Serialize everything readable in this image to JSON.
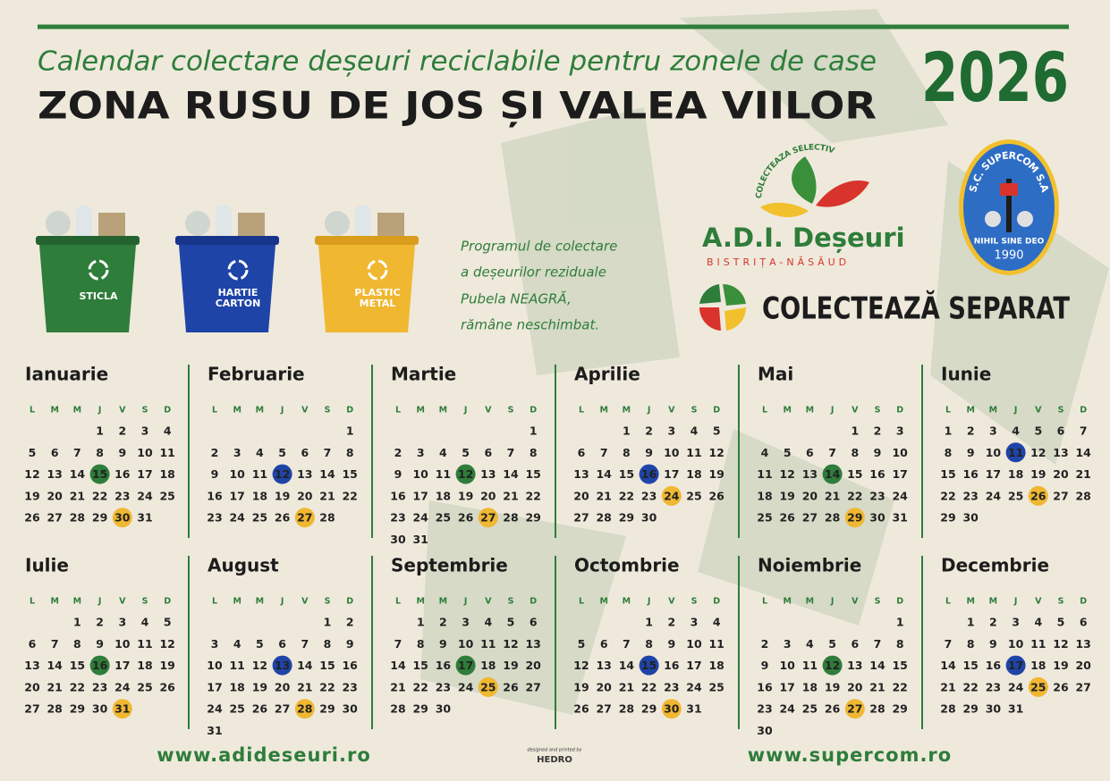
{
  "header": {
    "subtitle": "Calendar colectare deșeuri reciclabile pentru zonele de case",
    "title": "ZONA RUSU DE JOS ȘI VALEA VIILOR",
    "year": "2026"
  },
  "bins": {
    "glass": {
      "label": [
        "STICLA"
      ],
      "color": "#2e7d3a",
      "lid": "#236330"
    },
    "paper": {
      "label": [
        "HARTIE",
        "CARTON"
      ],
      "color": "#1f44a8",
      "lid": "#17358a"
    },
    "plastic": {
      "label": [
        "PLASTIC",
        "METAL"
      ],
      "color": "#f0b731",
      "lid": "#d99d1b"
    }
  },
  "note": [
    "Programul de colectare",
    "a deșeurilor reziduale",
    "Pubela NEAGRĂ,",
    "rămâne neschimbat."
  ],
  "logos": {
    "adi_arc": "COLECTEAZA SELECTIV",
    "adi_name": "A.D.I. Deșeuri",
    "adi_region": "BISTRIȚA-NĂSĂUD",
    "slogan": "COLECTEAZĂ SEPARAT",
    "supercom_name": "S.C. SUPERCOM S.A.",
    "supercom_motto": "NIHIL SINE DEO",
    "supercom_year": "1990"
  },
  "weekdays": [
    "L",
    "M",
    "M",
    "J",
    "V",
    "S",
    "D"
  ],
  "months": [
    {
      "name": "Ianuarie",
      "glass": 15,
      "plastic": 30,
      "weeks": [
        [
          null,
          null,
          null,
          1,
          2,
          3,
          4
        ],
        [
          5,
          6,
          7,
          8,
          9,
          10,
          11
        ],
        [
          12,
          13,
          14,
          15,
          16,
          17,
          18
        ],
        [
          19,
          20,
          21,
          22,
          23,
          24,
          25
        ],
        [
          26,
          27,
          28,
          29,
          30,
          31
        ]
      ]
    },
    {
      "name": "Februarie",
      "paper": 12,
      "plastic": 27,
      "weeks": [
        [
          null,
          null,
          null,
          null,
          null,
          null,
          1
        ],
        [
          2,
          3,
          4,
          5,
          6,
          7,
          8
        ],
        [
          9,
          10,
          11,
          12,
          13,
          14,
          15
        ],
        [
          16,
          17,
          18,
          19,
          20,
          21,
          22
        ],
        [
          23,
          24,
          25,
          26,
          27,
          28
        ]
      ]
    },
    {
      "name": "Martie",
      "glass": 12,
      "plastic": 27,
      "weeks": [
        [
          null,
          null,
          null,
          null,
          null,
          null,
          1
        ],
        [
          2,
          3,
          4,
          5,
          6,
          7,
          8
        ],
        [
          9,
          10,
          11,
          12,
          13,
          14,
          15
        ],
        [
          16,
          17,
          18,
          19,
          20,
          21,
          22
        ],
        [
          23,
          24,
          25,
          26,
          27,
          28,
          29
        ],
        [
          30,
          31
        ]
      ]
    },
    {
      "name": "Aprilie",
      "paper": 16,
      "plastic": 24,
      "weeks": [
        [
          null,
          null,
          1,
          2,
          3,
          4,
          5
        ],
        [
          6,
          7,
          8,
          9,
          10,
          11,
          12
        ],
        [
          13,
          14,
          15,
          16,
          17,
          18,
          19
        ],
        [
          20,
          21,
          22,
          23,
          24,
          25,
          26
        ],
        [
          27,
          28,
          29,
          30
        ]
      ]
    },
    {
      "name": "Mai",
      "glass": 14,
      "plastic": 29,
      "weeks": [
        [
          null,
          null,
          null,
          null,
          1,
          2,
          3
        ],
        [
          4,
          5,
          6,
          7,
          8,
          9,
          10
        ],
        [
          11,
          12,
          13,
          14,
          15,
          16,
          17
        ],
        [
          18,
          19,
          20,
          21,
          22,
          23,
          24
        ],
        [
          25,
          26,
          27,
          28,
          29,
          30,
          31
        ]
      ]
    },
    {
      "name": "Iunie",
      "paper": 11,
      "plastic": 26,
      "weeks": [
        [
          1,
          2,
          3,
          4,
          5,
          6,
          7
        ],
        [
          8,
          9,
          10,
          11,
          12,
          13,
          14
        ],
        [
          15,
          16,
          17,
          18,
          19,
          20,
          21
        ],
        [
          22,
          23,
          24,
          25,
          26,
          27,
          28
        ],
        [
          29,
          30
        ]
      ]
    },
    {
      "name": "Iulie",
      "glass": 16,
      "plastic": 31,
      "weeks": [
        [
          null,
          null,
          1,
          2,
          3,
          4,
          5
        ],
        [
          6,
          7,
          8,
          9,
          10,
          11,
          12
        ],
        [
          13,
          14,
          15,
          16,
          17,
          18,
          19
        ],
        [
          20,
          21,
          22,
          23,
          24,
          25,
          26
        ],
        [
          27,
          28,
          29,
          30,
          31
        ]
      ]
    },
    {
      "name": "August",
      "paper": 13,
      "plastic": 28,
      "weeks": [
        [
          null,
          null,
          null,
          null,
          null,
          1,
          2
        ],
        [
          3,
          4,
          5,
          6,
          7,
          8,
          9
        ],
        [
          10,
          11,
          12,
          13,
          14,
          15,
          16
        ],
        [
          17,
          18,
          19,
          20,
          21,
          22,
          23
        ],
        [
          24,
          25,
          26,
          27,
          28,
          29,
          30
        ],
        [
          31
        ]
      ]
    },
    {
      "name": "Septembrie",
      "glass": 17,
      "plastic": 25,
      "weeks": [
        [
          null,
          1,
          2,
          3,
          4,
          5,
          6
        ],
        [
          7,
          8,
          9,
          10,
          11,
          12,
          13
        ],
        [
          14,
          15,
          16,
          17,
          18,
          19,
          20
        ],
        [
          21,
          22,
          23,
          24,
          25,
          26,
          27
        ],
        [
          28,
          29,
          30
        ]
      ]
    },
    {
      "name": "Octombrie",
      "paper": 15,
      "plastic": 30,
      "weeks": [
        [
          null,
          null,
          null,
          1,
          2,
          3,
          4
        ],
        [
          5,
          6,
          7,
          8,
          9,
          10,
          11
        ],
        [
          12,
          13,
          14,
          15,
          16,
          17,
          18
        ],
        [
          19,
          20,
          21,
          22,
          23,
          24,
          25
        ],
        [
          26,
          27,
          28,
          29,
          30,
          31
        ]
      ]
    },
    {
      "name": "Noiembrie",
      "glass": 12,
      "plastic": 27,
      "weeks": [
        [
          null,
          null,
          null,
          null,
          null,
          null,
          1
        ],
        [
          2,
          3,
          4,
          5,
          6,
          7,
          8
        ],
        [
          9,
          10,
          11,
          12,
          13,
          14,
          15
        ],
        [
          16,
          17,
          18,
          19,
          20,
          21,
          22
        ],
        [
          23,
          24,
          25,
          26,
          27,
          28,
          29
        ],
        [
          30
        ]
      ]
    },
    {
      "name": "Decembrie",
      "paper": 17,
      "plastic": 25,
      "weeks": [
        [
          null,
          1,
          2,
          3,
          4,
          5,
          6
        ],
        [
          7,
          8,
          9,
          10,
          11,
          12,
          13
        ],
        [
          14,
          15,
          16,
          17,
          18,
          19,
          20
        ],
        [
          21,
          22,
          23,
          24,
          25,
          26,
          27
        ],
        [
          28,
          29,
          30,
          31
        ]
      ]
    }
  ],
  "footer": {
    "left_url": "www.adideseuri.ro",
    "credit": "designed and printed by",
    "studio": "HEDRO",
    "right_url": "www.supercom.ro"
  }
}
